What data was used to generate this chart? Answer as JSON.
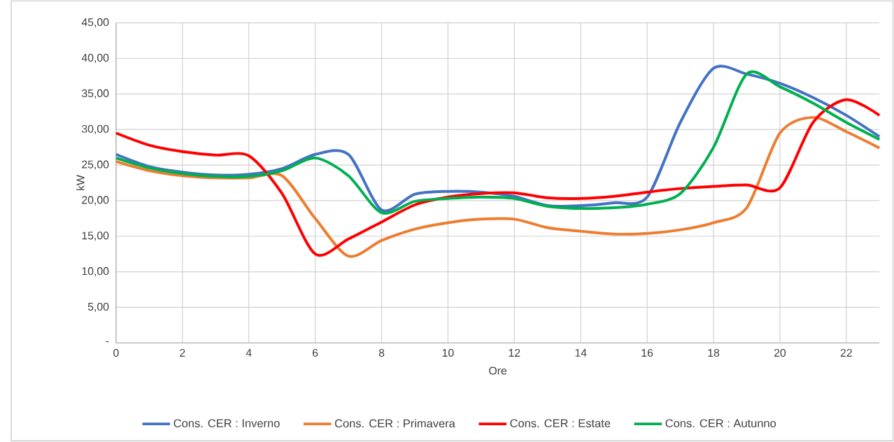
{
  "chart_data": {
    "type": "line",
    "xlabel": "Ore",
    "ylabel": "kW",
    "x": [
      0,
      1,
      2,
      3,
      4,
      5,
      6,
      7,
      8,
      9,
      10,
      11,
      12,
      13,
      14,
      15,
      16,
      17,
      18,
      19,
      20,
      21,
      22,
      23
    ],
    "series": [
      {
        "name": "Cons. CER : Inverno",
        "color": "#4472c4",
        "values": [
          26.5,
          24.8,
          24.0,
          23.6,
          23.7,
          24.5,
          26.5,
          26.5,
          18.7,
          20.9,
          21.3,
          21.2,
          20.6,
          19.3,
          19.3,
          19.7,
          20.5,
          31.0,
          38.6,
          37.8,
          36.5,
          34.5,
          32.0,
          29.0
        ]
      },
      {
        "name": "Cons. CER : Primavera",
        "color": "#ed7d31",
        "values": [
          25.5,
          24.2,
          23.5,
          23.2,
          23.2,
          23.5,
          17.5,
          12.2,
          14.4,
          16.0,
          16.9,
          17.4,
          17.4,
          16.2,
          15.7,
          15.3,
          15.4,
          15.9,
          16.9,
          19.0,
          29.5,
          31.7,
          29.7,
          27.4
        ]
      },
      {
        "name": "Cons. CER : Estate",
        "color": "#ff0000",
        "values": [
          29.5,
          27.8,
          26.9,
          26.4,
          26.3,
          21.0,
          12.5,
          14.6,
          17.0,
          19.4,
          20.5,
          21.0,
          21.1,
          20.4,
          20.3,
          20.6,
          21.2,
          21.7,
          22.0,
          22.2,
          21.8,
          31.0,
          34.2,
          32.0
        ]
      },
      {
        "name": "Cons. CER : Autunno",
        "color": "#00b050",
        "values": [
          26.0,
          24.6,
          23.8,
          23.4,
          23.4,
          24.2,
          26.0,
          23.5,
          18.3,
          19.9,
          20.3,
          20.5,
          20.3,
          19.2,
          18.9,
          19.0,
          19.5,
          21.0,
          27.5,
          37.8,
          36.0,
          33.7,
          31.0,
          28.6
        ]
      }
    ],
    "xlim": [
      0,
      23
    ],
    "ylim": [
      0,
      45
    ],
    "xticks": [
      0,
      2,
      4,
      6,
      8,
      10,
      12,
      14,
      16,
      18,
      20,
      22
    ],
    "yticks": [
      {
        "value": 0,
        "label": "-"
      },
      {
        "value": 5,
        "label": "5,00"
      },
      {
        "value": 10,
        "label": "10,00"
      },
      {
        "value": 15,
        "label": "15,00"
      },
      {
        "value": 20,
        "label": "20,00"
      },
      {
        "value": 25,
        "label": "25,00"
      },
      {
        "value": 30,
        "label": "30,00"
      },
      {
        "value": 35,
        "label": "35,00"
      },
      {
        "value": 40,
        "label": "40,00"
      },
      {
        "value": 45,
        "label": "45,00"
      }
    ],
    "grid": true,
    "legend": "bottom"
  }
}
